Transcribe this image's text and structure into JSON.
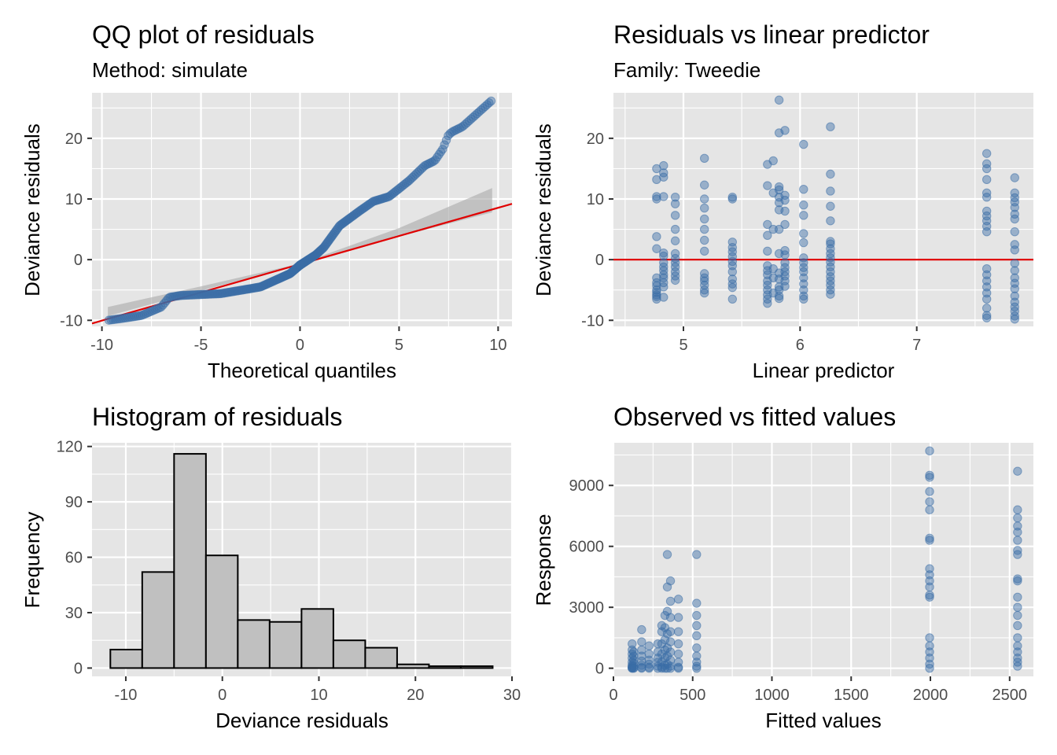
{
  "colors": {
    "panel_bg": "#e5e5e5",
    "grid": "#ffffff",
    "point": "#3a6da6",
    "ref_line": "#e00000",
    "band": "#a9a9a9",
    "hist_fill": "#c0c0c0",
    "hist_stroke": "#000000"
  },
  "chart_data": [
    {
      "type": "scatter",
      "title": "QQ plot of residuals",
      "subtitle": "Method: simulate",
      "xlabel": "Theoretical quantiles",
      "ylabel": "Deviance residuals",
      "xlim": [
        -10.5,
        10.7
      ],
      "ylim": [
        -11.0,
        27.5
      ],
      "xticks": [
        -10,
        -5,
        0,
        5,
        10
      ],
      "yticks": [
        -10,
        0,
        10,
        20
      ],
      "grid": true,
      "reference_line": {
        "slope": 0.93,
        "intercept": -0.75
      },
      "band": [
        [
          -9.7,
          -9.3,
          -7.8
        ],
        [
          -5,
          -5.1,
          -4.4
        ],
        [
          0,
          -0.85,
          -0.65
        ],
        [
          5,
          3.8,
          5.2
        ],
        [
          9.7,
          7.8,
          11.8
        ]
      ],
      "quantile_curve": [
        [
          -9.7,
          -10.0
        ],
        [
          -9.0,
          -9.7
        ],
        [
          -8.0,
          -9.2
        ],
        [
          -7.0,
          -7.8
        ],
        [
          -6.6,
          -6.2
        ],
        [
          -6.0,
          -5.9
        ],
        [
          -4.0,
          -5.6
        ],
        [
          -2.0,
          -4.5
        ],
        [
          -0.5,
          -2.3
        ],
        [
          0.0,
          -0.9
        ],
        [
          0.8,
          0.8
        ],
        [
          1.2,
          2.0
        ],
        [
          1.6,
          3.8
        ],
        [
          2.0,
          5.6
        ],
        [
          3.0,
          8.0
        ],
        [
          3.7,
          9.6
        ],
        [
          4.5,
          10.4
        ],
        [
          5.5,
          13.0
        ],
        [
          6.3,
          15.5
        ],
        [
          6.8,
          16.3
        ],
        [
          7.2,
          18.2
        ],
        [
          7.5,
          20.6
        ],
        [
          7.7,
          21.1
        ],
        [
          8.2,
          21.9
        ],
        [
          9.7,
          26.3
        ]
      ],
      "n_points": 300
    },
    {
      "type": "scatter",
      "title": "Residuals vs linear predictor",
      "subtitle": "Family: Tweedie",
      "xlabel": "Linear predictor",
      "ylabel": "Deviance residuals",
      "xlim": [
        4.4,
        8.0
      ],
      "ylim": [
        -11.0,
        27.5
      ],
      "xticks": [
        5,
        6,
        7
      ],
      "yticks": [
        -10,
        0,
        10,
        20
      ],
      "grid": true,
      "reference_line": {
        "y": 0
      },
      "groups": [
        {
          "x": 4.77,
          "y": [
            15.0,
            13.2,
            10.4,
            10.0,
            3.8,
            1.8,
            -3.0,
            -3.8,
            -4.3,
            -5.0,
            -5.4,
            -5.8,
            -6.1,
            -6.5
          ]
        },
        {
          "x": 4.83,
          "y": [
            15.5,
            14.3,
            13.6,
            10.4,
            1.1,
            0.6,
            -0.5,
            -1.2,
            -1.8,
            -2.5,
            -3.0,
            -3.8,
            -4.5,
            -6.2
          ]
        },
        {
          "x": 4.93,
          "y": [
            10.3,
            9.2,
            7.3,
            5.0,
            3.1,
            1.0,
            0.2,
            -0.5,
            -1.2,
            -2.0,
            -2.7,
            -3.4
          ]
        },
        {
          "x": 5.18,
          "y": [
            16.7,
            12.3,
            10.0,
            8.5,
            6.7,
            5.0,
            3.2,
            1.4,
            -2.3,
            -3.0,
            -3.5,
            -4.2,
            -5.0,
            -5.5
          ]
        },
        {
          "x": 5.42,
          "y": [
            10.3,
            10.0,
            2.9,
            2.0,
            1.3,
            0.5,
            -0.3,
            -1.0,
            -2.0,
            -3.2,
            -4.0,
            -4.6,
            -6.5
          ]
        },
        {
          "x": 5.72,
          "y": [
            15.7,
            12.2,
            5.8,
            4.0,
            1.4,
            -1.0,
            -1.8,
            -2.5,
            -3.5,
            -4.2,
            -5.0,
            -5.8,
            -6.5,
            -7.2
          ]
        },
        {
          "x": 5.77,
          "y": [
            16.3,
            11.0,
            5.0,
            -1.5,
            -3.0,
            -5.5
          ]
        },
        {
          "x": 5.82,
          "y": [
            26.3,
            20.9,
            12.0,
            11.5,
            10.3,
            9.4,
            8.2,
            5.0,
            1.0,
            -2.2,
            -3.2,
            -4.5,
            -5.0,
            -6.0,
            -6.4
          ]
        },
        {
          "x": 5.87,
          "y": [
            21.3,
            10.6,
            9.8,
            8.0,
            5.8,
            1.5,
            0.8,
            -0.5,
            -1.3,
            -2.0,
            -2.7,
            -3.5,
            -4.4
          ]
        },
        {
          "x": 6.03,
          "y": [
            19.0,
            11.6,
            9.0,
            7.3,
            4.3,
            2.8,
            0.3,
            -0.5,
            -1.3,
            -2.0,
            -3.0,
            -4.0,
            -5.0,
            -6.0,
            -6.5
          ]
        },
        {
          "x": 6.26,
          "y": [
            21.9,
            14.1,
            11.3,
            8.8,
            6.4,
            3.0,
            2.6,
            1.8,
            1.0,
            0.3,
            -0.4,
            -1.2,
            -2.0,
            -2.8,
            -3.5,
            -4.2,
            -5.0,
            -5.7
          ]
        },
        {
          "x": 7.6,
          "y": [
            17.5,
            15.8,
            15.0,
            13.2,
            11.0,
            10.3,
            8.0,
            7.2,
            6.4,
            5.5,
            4.6,
            -1.5,
            -2.5,
            -3.5,
            -4.5,
            -5.5,
            -6.5,
            -8.0,
            -9.2,
            -9.6
          ]
        },
        {
          "x": 7.84,
          "y": [
            13.5,
            11.0,
            10.2,
            9.5,
            8.6,
            7.5,
            6.7,
            4.6,
            2.5,
            1.6,
            -0.6,
            -1.8,
            -3.0,
            -3.9,
            -4.8,
            -6.0,
            -7.0,
            -7.8,
            -8.5,
            -9.3,
            -9.8
          ]
        }
      ]
    },
    {
      "type": "bar",
      "title": "Histogram of residuals",
      "xlabel": "Deviance residuals",
      "ylabel": "Frequency",
      "xlim": [
        -13.5,
        30.0
      ],
      "ylim": [
        -4.5,
        122.0
      ],
      "xticks": [
        -10,
        0,
        10,
        20,
        30
      ],
      "yticks": [
        0,
        30,
        60,
        90,
        120
      ],
      "grid": true,
      "bin_edges": [
        -11.6,
        -8.3,
        -5.0,
        -1.7,
        1.6,
        4.9,
        8.2,
        11.5,
        14.8,
        18.1,
        21.4,
        24.7,
        28.0
      ],
      "counts": [
        10,
        52,
        116,
        61,
        26,
        25,
        32,
        15,
        11,
        2,
        1,
        1
      ]
    },
    {
      "type": "scatter",
      "title": "Observed vs fitted values",
      "xlabel": "Fitted values",
      "ylabel": "Response",
      "xlim": [
        0,
        2650
      ],
      "ylim": [
        -400,
        11100
      ],
      "xticks": [
        0,
        500,
        1000,
        1500,
        2000,
        2500
      ],
      "yticks": [
        0,
        3000,
        6000,
        9000
      ],
      "grid": true,
      "groups": [
        {
          "x": 118,
          "y": [
            1200,
            900,
            700,
            500,
            300,
            150,
            80,
            30,
            10,
            0
          ]
        },
        {
          "x": 128,
          "y": [
            800,
            600,
            400,
            250,
            100,
            20,
            0
          ]
        },
        {
          "x": 178,
          "y": [
            1900,
            1300,
            900,
            600,
            350,
            150,
            40,
            0
          ]
        },
        {
          "x": 225,
          "y": [
            1100,
            700,
            400,
            200,
            50,
            0
          ]
        },
        {
          "x": 280,
          "y": [
            1200,
            800,
            500,
            300,
            100,
            0
          ]
        },
        {
          "x": 305,
          "y": [
            2100,
            1800,
            1200,
            700,
            300,
            60,
            0
          ]
        },
        {
          "x": 325,
          "y": [
            2600,
            2000,
            1400,
            900,
            500,
            150,
            0
          ]
        },
        {
          "x": 340,
          "y": [
            5600,
            4000,
            2800,
            1700,
            1000,
            600,
            200,
            0
          ]
        },
        {
          "x": 360,
          "y": [
            4300,
            3300,
            2500,
            1800,
            1300,
            800,
            400,
            100,
            0
          ]
        },
        {
          "x": 410,
          "y": [
            3400,
            2500,
            1800,
            1200,
            700,
            300,
            50,
            0
          ]
        },
        {
          "x": 525,
          "y": [
            5600,
            3200,
            2600,
            2100,
            1600,
            1000,
            600,
            300,
            100,
            0
          ]
        },
        {
          "x": 1995,
          "y": [
            10700,
            9500,
            9400,
            8700,
            8200,
            7800,
            6400,
            6300,
            4900,
            4600,
            4300,
            4000,
            3600,
            3500,
            1500,
            1100,
            800,
            500,
            200,
            0
          ]
        },
        {
          "x": 2550,
          "y": [
            9700,
            7800,
            7400,
            7000,
            6700,
            6300,
            5800,
            5600,
            4400,
            4300,
            3500,
            3000,
            2600,
            2100,
            1500,
            1100,
            800,
            500,
            300,
            100
          ]
        }
      ]
    }
  ]
}
